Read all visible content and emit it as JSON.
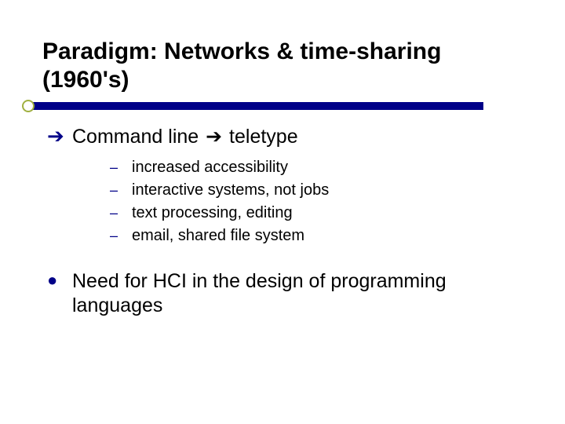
{
  "slide": {
    "title": "Paradigm: Networks & time-sharing (1960's)",
    "title_color": "#000000",
    "title_fontsize": 30,
    "underline_color": "#000088",
    "underline_circle_border": "#a0b040",
    "main_bullet": {
      "arrow_glyph": "➔",
      "text_before": "Command line ",
      "text_arrow": "➔",
      "text_after": " teletype",
      "fontsize": 25
    },
    "sub_items": [
      "increased accessibility",
      "interactive systems, not jobs",
      "text processing, editing",
      "email, shared file system"
    ],
    "sub_dash": "–",
    "sub_fontsize": 20,
    "final": {
      "dot_glyph": "●",
      "text": "Need for HCI in the design of programming languages",
      "fontsize": 25
    },
    "bullet_color": "#000088",
    "background": "#ffffff"
  }
}
